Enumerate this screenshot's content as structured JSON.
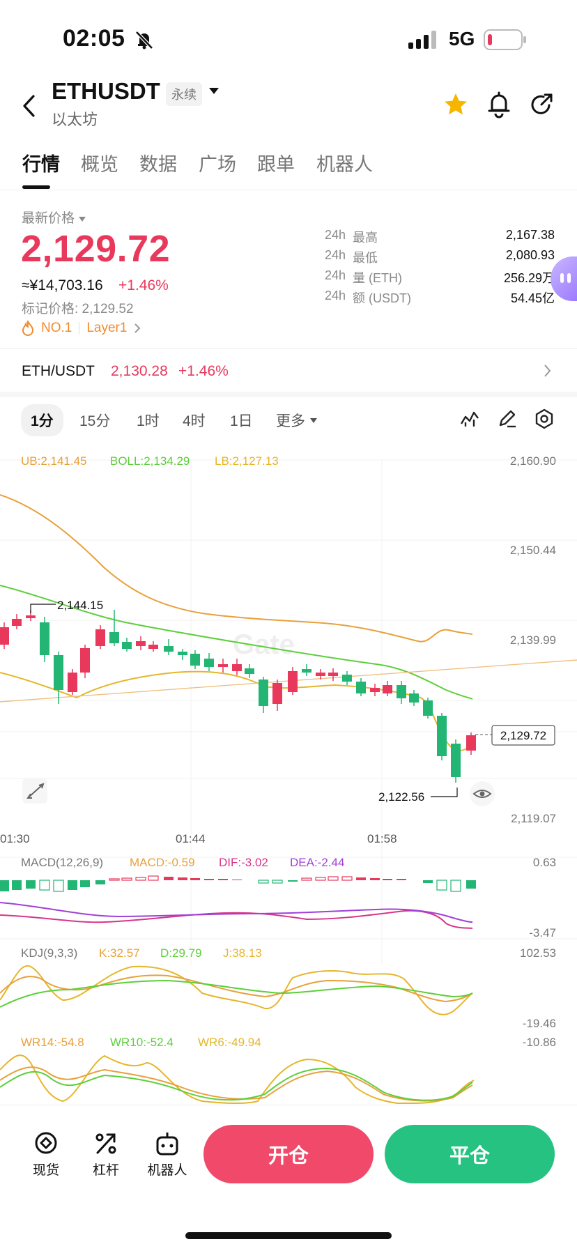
{
  "status_bar": {
    "time": "02:05",
    "network": "5G"
  },
  "header": {
    "symbol": "ETHUSDT",
    "perp_tag": "永续",
    "name": "以太坊"
  },
  "tabs": [
    "行情",
    "概览",
    "数据",
    "广场",
    "跟单",
    "机器人"
  ],
  "price": {
    "last_label": "最新价格",
    "last": "2,129.72",
    "cny": "≈¥14,703.16",
    "change": "+1.46%",
    "mark": "标记价格: 2,129.52",
    "rank": "NO.1",
    "category": "Layer1"
  },
  "stats": [
    {
      "k1": "24h",
      "k2": "最高",
      "v": "2,167.38"
    },
    {
      "k1": "24h",
      "k2": "最低",
      "v": "2,080.93"
    },
    {
      "k1": "24h",
      "k2": "量 (ETH)",
      "v": "256.29万"
    },
    {
      "k1": "24h",
      "k2": "额 (USDT)",
      "v": "54.45亿"
    }
  ],
  "spot": {
    "pair": "ETH/USDT",
    "price": "2,130.28",
    "change": "+1.46%"
  },
  "intervals": [
    "1分",
    "15分",
    "1时",
    "4时",
    "1日",
    "更多"
  ],
  "chart": {
    "boll_ub": "UB:2,141.45",
    "boll_mid": "BOLL:2,134.29",
    "boll_lb": "LB:2,127.13",
    "y_ticks": [
      "2,160.90",
      "2,150.44",
      "2,139.99",
      "2,119.07"
    ],
    "price_tag": "2,129.72",
    "high_label": "2,144.15",
    "low_label": "2,122.56",
    "x_ticks": [
      "01:30",
      "01:44",
      "01:58"
    ],
    "watermark": "Gate",
    "macd_title": "MACD(12,26,9)",
    "macd_val": "MACD:-0.59",
    "dif_val": "DIF:-3.02",
    "dea_val": "DEA:-2.44",
    "macd_max": "0.63",
    "macd_min": "-3.47",
    "kdj_title": "KDJ(9,3,3)",
    "k_val": "K:32.57",
    "d_val": "D:29.79",
    "j_val": "J:38.13",
    "kdj_max": "102.53",
    "kdj_min": "-19.46",
    "wr14": "WR14:-54.8",
    "wr10": "WR10:-52.4",
    "wr6": "WR6:-49.94",
    "wr_max": "-10.86"
  },
  "bottom": {
    "spot": "现货",
    "leverage": "杠杆",
    "bot": "机器人",
    "open": "开仓",
    "close": "平仓"
  },
  "colors": {
    "up": "#e8395c",
    "down": "#22b573",
    "ub": "#e8a03a",
    "mid": "#5ccf3a",
    "lb": "#e6b62a"
  }
}
